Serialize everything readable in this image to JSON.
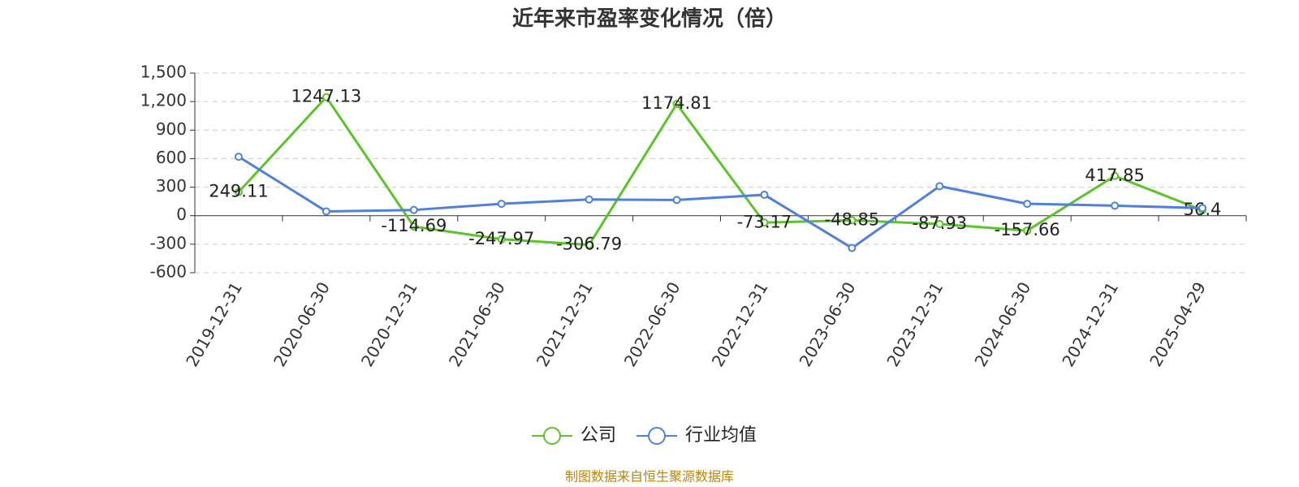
{
  "chart_data": {
    "type": "line",
    "title": "近年来市盈率变化情况（倍）",
    "categories": [
      "2019-12-31",
      "2020-06-30",
      "2020-12-31",
      "2021-06-30",
      "2021-12-31",
      "2022-06-30",
      "2022-12-31",
      "2023-06-30",
      "2023-12-31",
      "2024-06-30",
      "2024-12-31",
      "2025-04-29"
    ],
    "series": [
      {
        "name": "公司",
        "color": "#5cc42a",
        "values": [
          249.11,
          1247.13,
          -114.69,
          -247.97,
          -306.79,
          1174.81,
          -73.17,
          -48.85,
          -87.93,
          -157.66,
          417.85,
          56.4
        ]
      },
      {
        "name": "行业均值",
        "color": "#4f80dc",
        "values": [
          620,
          45,
          60,
          125,
          170,
          165,
          220,
          -340,
          310,
          125,
          105,
          80
        ]
      }
    ],
    "ylim": [
      -600,
      1500
    ],
    "yticks": [
      -600,
      -300,
      0,
      300,
      600,
      900,
      {
        "value": 1200,
        "label": "1,200"
      },
      {
        "value": 1500,
        "label": "1,500"
      }
    ],
    "grid": true,
    "legend": "bottom",
    "footer": "制图数据来自恒生聚源数据库"
  }
}
